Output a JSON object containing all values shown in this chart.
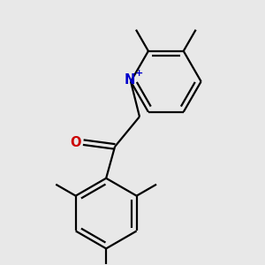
{
  "background_color": "#e8e8e8",
  "bond_color": "#000000",
  "nitrogen_color": "#0000cc",
  "oxygen_color": "#cc0000",
  "line_width": 1.6,
  "font_size": 10.5,
  "lw_scale": 1.0
}
